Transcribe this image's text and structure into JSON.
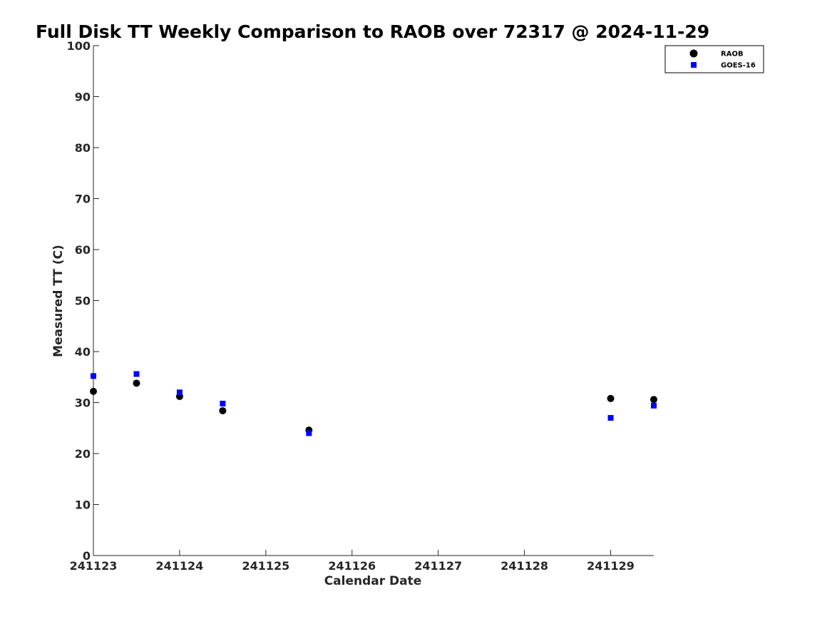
{
  "chart_data": {
    "type": "scatter",
    "title": "Full Disk TT Weekly Comparison to RAOB over 72317 @ 2024-11-29",
    "xlabel": "Calendar Date",
    "ylabel": "Measured TT (C)",
    "x_ticks": [
      "241123",
      "241124",
      "241125",
      "241126",
      "241127",
      "241128",
      "241129"
    ],
    "xlim": [
      "2024-11-23 00:00",
      "2024-11-29 12:00"
    ],
    "ylim": [
      0,
      100
    ],
    "y_ticks": [
      0,
      10,
      20,
      30,
      40,
      50,
      60,
      70,
      80,
      90,
      100
    ],
    "grid": false,
    "legend_position": "top-right",
    "series": [
      {
        "name": "RAOB",
        "marker": "circle",
        "color": "#000000",
        "points": [
          {
            "x": "2024-11-23 00:00",
            "y": 32.2
          },
          {
            "x": "2024-11-23 12:00",
            "y": 33.8
          },
          {
            "x": "2024-11-24 00:00",
            "y": 31.2
          },
          {
            "x": "2024-11-24 12:00",
            "y": 28.4
          },
          {
            "x": "2024-11-25 12:00",
            "y": 24.6
          },
          {
            "x": "2024-11-29 00:00",
            "y": 30.8
          },
          {
            "x": "2024-11-29 12:00",
            "y": 30.6
          }
        ]
      },
      {
        "name": "GOES-16",
        "marker": "square",
        "color": "#0000ff",
        "points": [
          {
            "x": "2024-11-23 00:00",
            "y": 35.2
          },
          {
            "x": "2024-11-23 12:00",
            "y": 35.6
          },
          {
            "x": "2024-11-24 00:00",
            "y": 32.0
          },
          {
            "x": "2024-11-24 12:00",
            "y": 29.8
          },
          {
            "x": "2024-11-25 12:00",
            "y": 24.0
          },
          {
            "x": "2024-11-29 00:00",
            "y": 27.0
          },
          {
            "x": "2024-11-29 12:00",
            "y": 29.4
          }
        ]
      }
    ]
  }
}
